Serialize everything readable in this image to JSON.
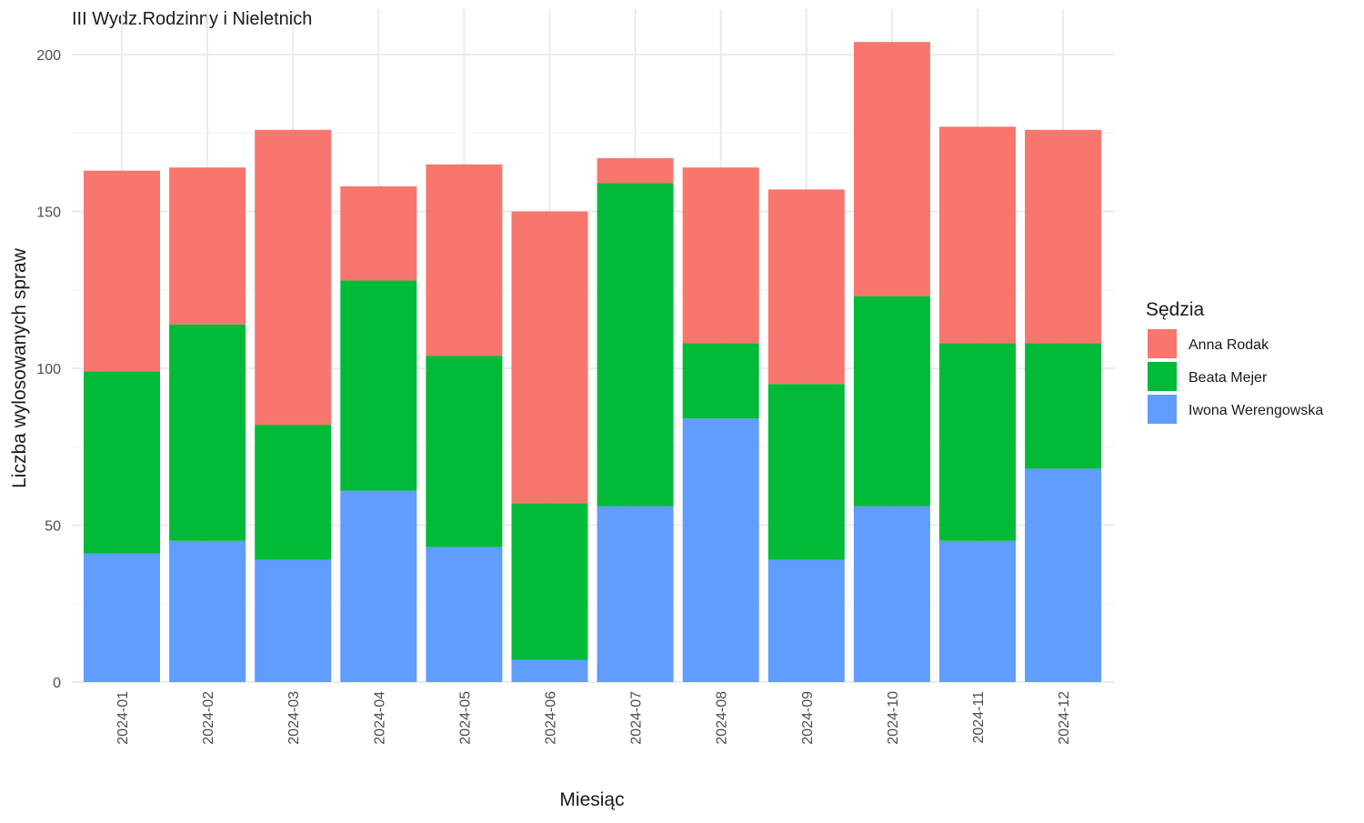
{
  "chart_data": {
    "type": "bar",
    "stacked": true,
    "title": "III Wydz.Rodzinny i Nieletnich",
    "xlabel": "Miesiąc",
    "ylabel": "Liczba wylosowanych spraw",
    "categories": [
      "2024-01",
      "2024-02",
      "2024-03",
      "2024-04",
      "2024-05",
      "2024-06",
      "2024-07",
      "2024-08",
      "2024-09",
      "2024-10",
      "2024-11",
      "2024-12"
    ],
    "ylim": [
      0,
      210
    ],
    "yticks": [
      0,
      50,
      100,
      150,
      200
    ],
    "grid": true,
    "legend": {
      "title": "Sędzia",
      "position": "right"
    },
    "series": [
      {
        "name": "Iwona Werengowska",
        "color": "#619CFF",
        "values": [
          41,
          45,
          39,
          61,
          43,
          7,
          56,
          84,
          39,
          56,
          45,
          68
        ]
      },
      {
        "name": "Beata Mejer",
        "color": "#00BA38",
        "values": [
          58,
          69,
          43,
          67,
          61,
          50,
          103,
          24,
          56,
          67,
          63,
          40
        ]
      },
      {
        "name": "Anna Rodak",
        "color": "#F8766D",
        "values": [
          64,
          50,
          94,
          30,
          61,
          93,
          8,
          56,
          62,
          81,
          69,
          68
        ]
      }
    ],
    "legend_order": [
      "Anna Rodak",
      "Beata Mejer",
      "Iwona Werengowska"
    ]
  }
}
